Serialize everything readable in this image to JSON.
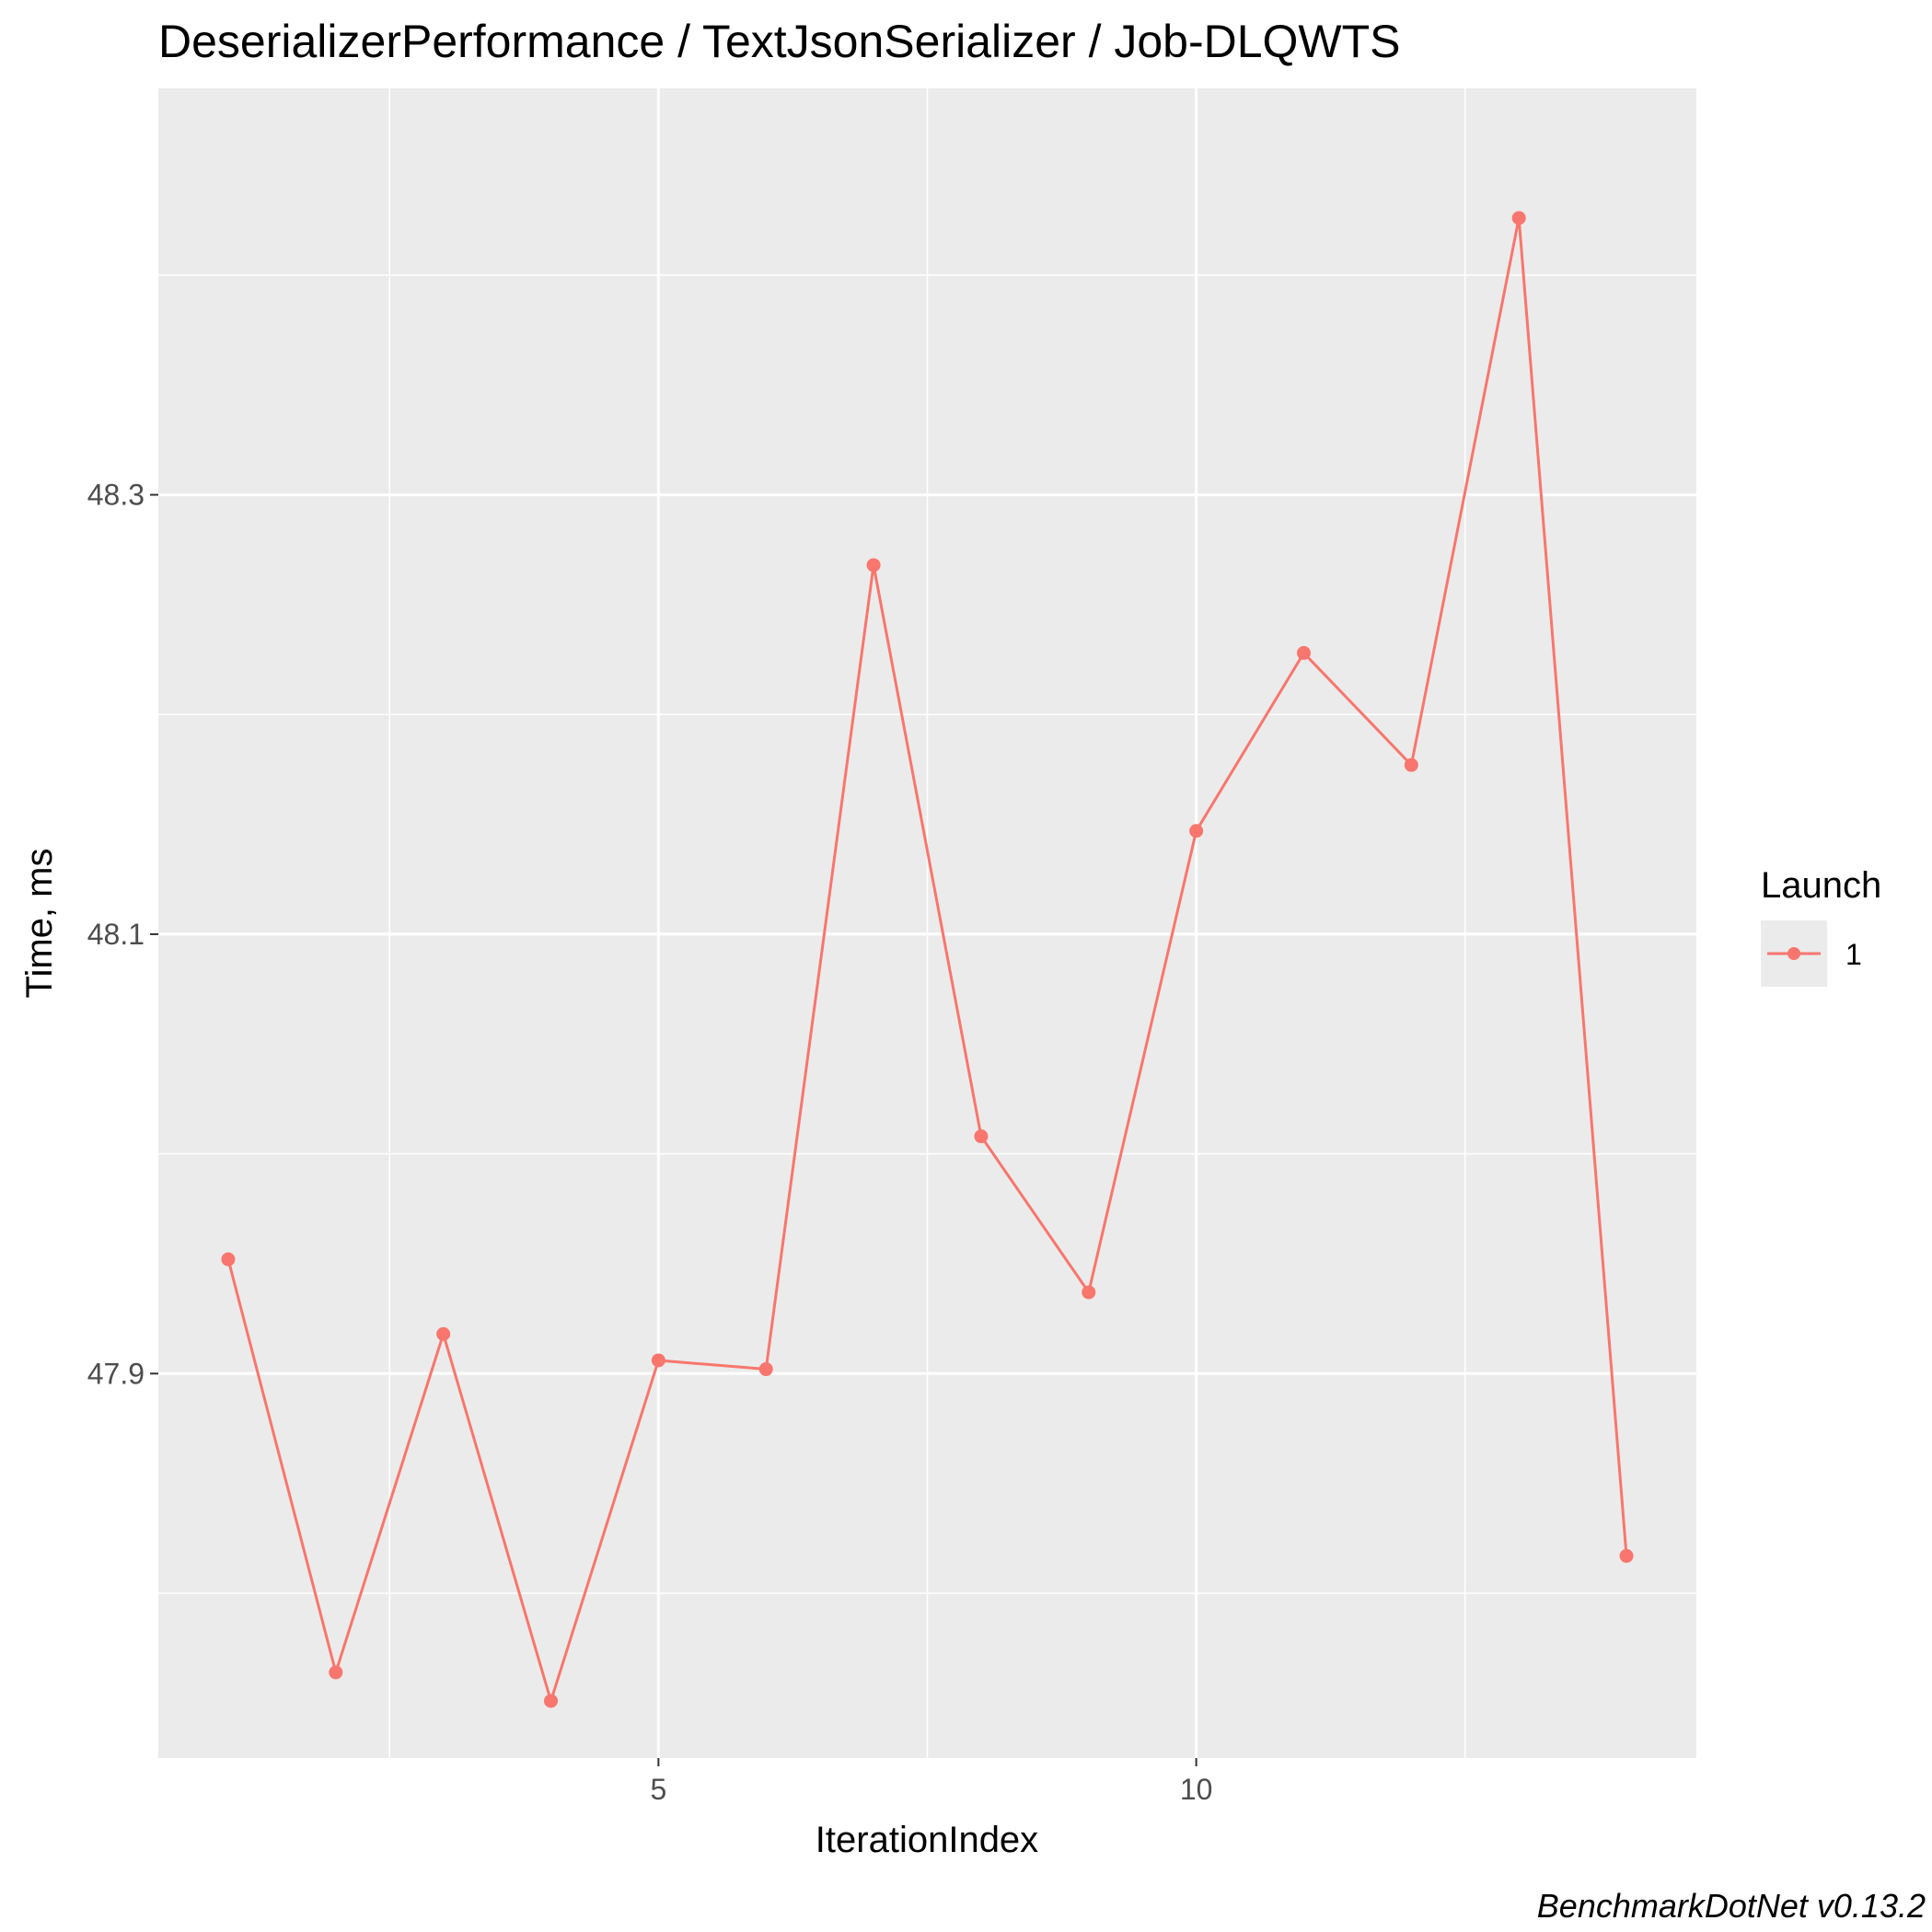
{
  "chart_data": {
    "type": "line",
    "title": "DeserializerPerformance / TextJsonSerializer / Job-DLQWTS",
    "xlabel": "IterationIndex",
    "ylabel": "Time, ms",
    "xlim": [
      0.35,
      14.65
    ],
    "ylim": [
      47.725,
      48.485
    ],
    "x_ticks": [
      5,
      10
    ],
    "y_ticks": [
      47.9,
      48.1,
      48.3
    ],
    "x_tick_labels": [
      "5",
      "10"
    ],
    "y_tick_labels": [
      "47.9",
      "48.1",
      "48.3"
    ],
    "x_minor_grid": [
      2.5,
      7.5,
      12.5
    ],
    "y_minor_grid": [
      47.8,
      48.0,
      48.2,
      48.4
    ],
    "grid": true,
    "legend_position": "right",
    "legend_title": "Launch",
    "series": [
      {
        "name": "1",
        "color": "#F8766D",
        "x": [
          1,
          2,
          3,
          4,
          5,
          6,
          7,
          8,
          9,
          10,
          11,
          12,
          13,
          14
        ],
        "y": [
          47.952,
          47.764,
          47.918,
          47.751,
          47.906,
          47.902,
          48.268,
          48.008,
          47.937,
          48.147,
          48.228,
          48.177,
          48.426,
          47.817
        ]
      }
    ],
    "footer": "BenchmarkDotNet v0.13.2"
  }
}
